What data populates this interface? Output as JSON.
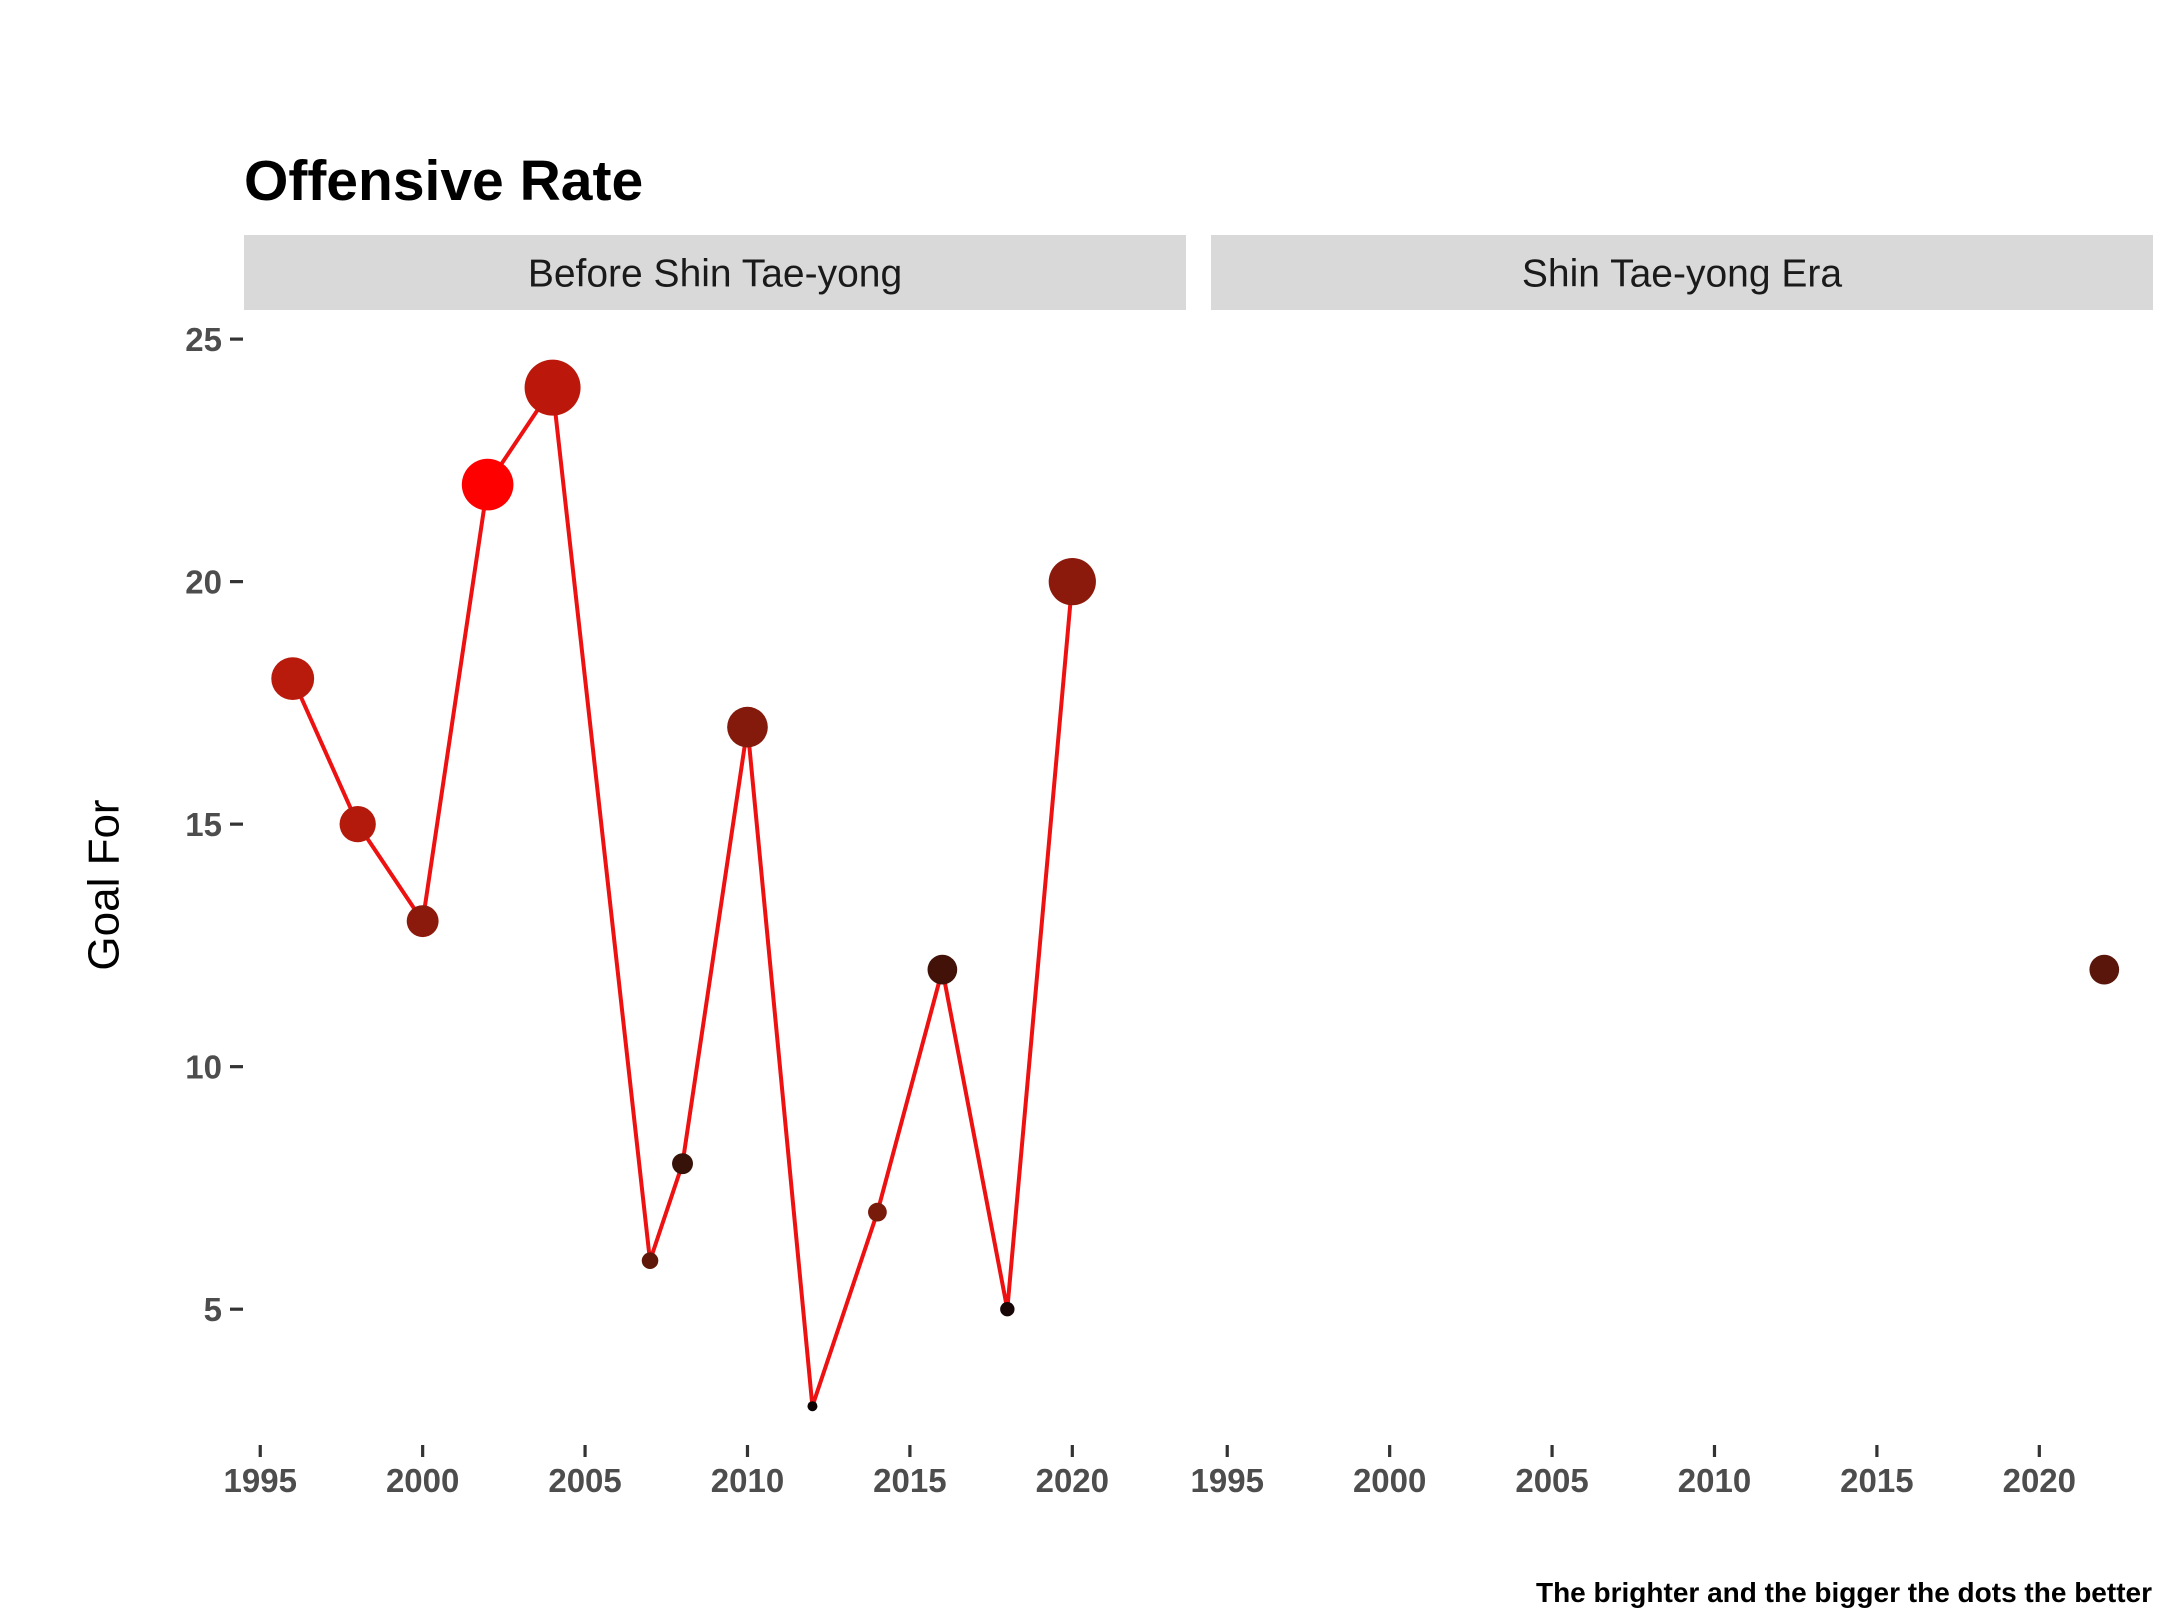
{
  "chart_data": {
    "type": "scatter",
    "title": "Offensive Rate",
    "ylabel": "Goal For",
    "xlabel": "",
    "caption": "The brighter and the bigger the dots the better",
    "xlim": [
      1994.5,
      2023.5
    ],
    "ylim": [
      2.2,
      25.6
    ],
    "x_ticks": [
      1995,
      2000,
      2005,
      2010,
      2015,
      2020
    ],
    "y_ticks": [
      5,
      10,
      15,
      20,
      25
    ],
    "line_color": "#ee1111",
    "facets": [
      {
        "label": "Before Shin Tae-yong",
        "connected": true,
        "points": [
          {
            "x": 1996,
            "y": 18,
            "color": "#b81a0c"
          },
          {
            "x": 1998,
            "y": 15,
            "color": "#b41a0b"
          },
          {
            "x": 2000,
            "y": 13,
            "color": "#8c1a0c"
          },
          {
            "x": 2002,
            "y": 22,
            "color": "#ff0000"
          },
          {
            "x": 2004,
            "y": 24,
            "color": "#bb180b"
          },
          {
            "x": 2007,
            "y": 6,
            "color": "#5e1709"
          },
          {
            "x": 2008,
            "y": 8,
            "color": "#361208"
          },
          {
            "x": 2010,
            "y": 17,
            "color": "#841a0c"
          },
          {
            "x": 2012,
            "y": 3,
            "color": "#0b0303"
          },
          {
            "x": 2014,
            "y": 7,
            "color": "#791b0b"
          },
          {
            "x": 2016,
            "y": 12,
            "color": "#421107"
          },
          {
            "x": 2018,
            "y": 5,
            "color": "#180606"
          },
          {
            "x": 2020,
            "y": 20,
            "color": "#8c1a0c"
          }
        ]
      },
      {
        "label": "Shin Tae-yong Era",
        "connected": false,
        "points": [
          {
            "x": 2022,
            "y": 12,
            "color": "#5a160a"
          }
        ]
      }
    ]
  }
}
